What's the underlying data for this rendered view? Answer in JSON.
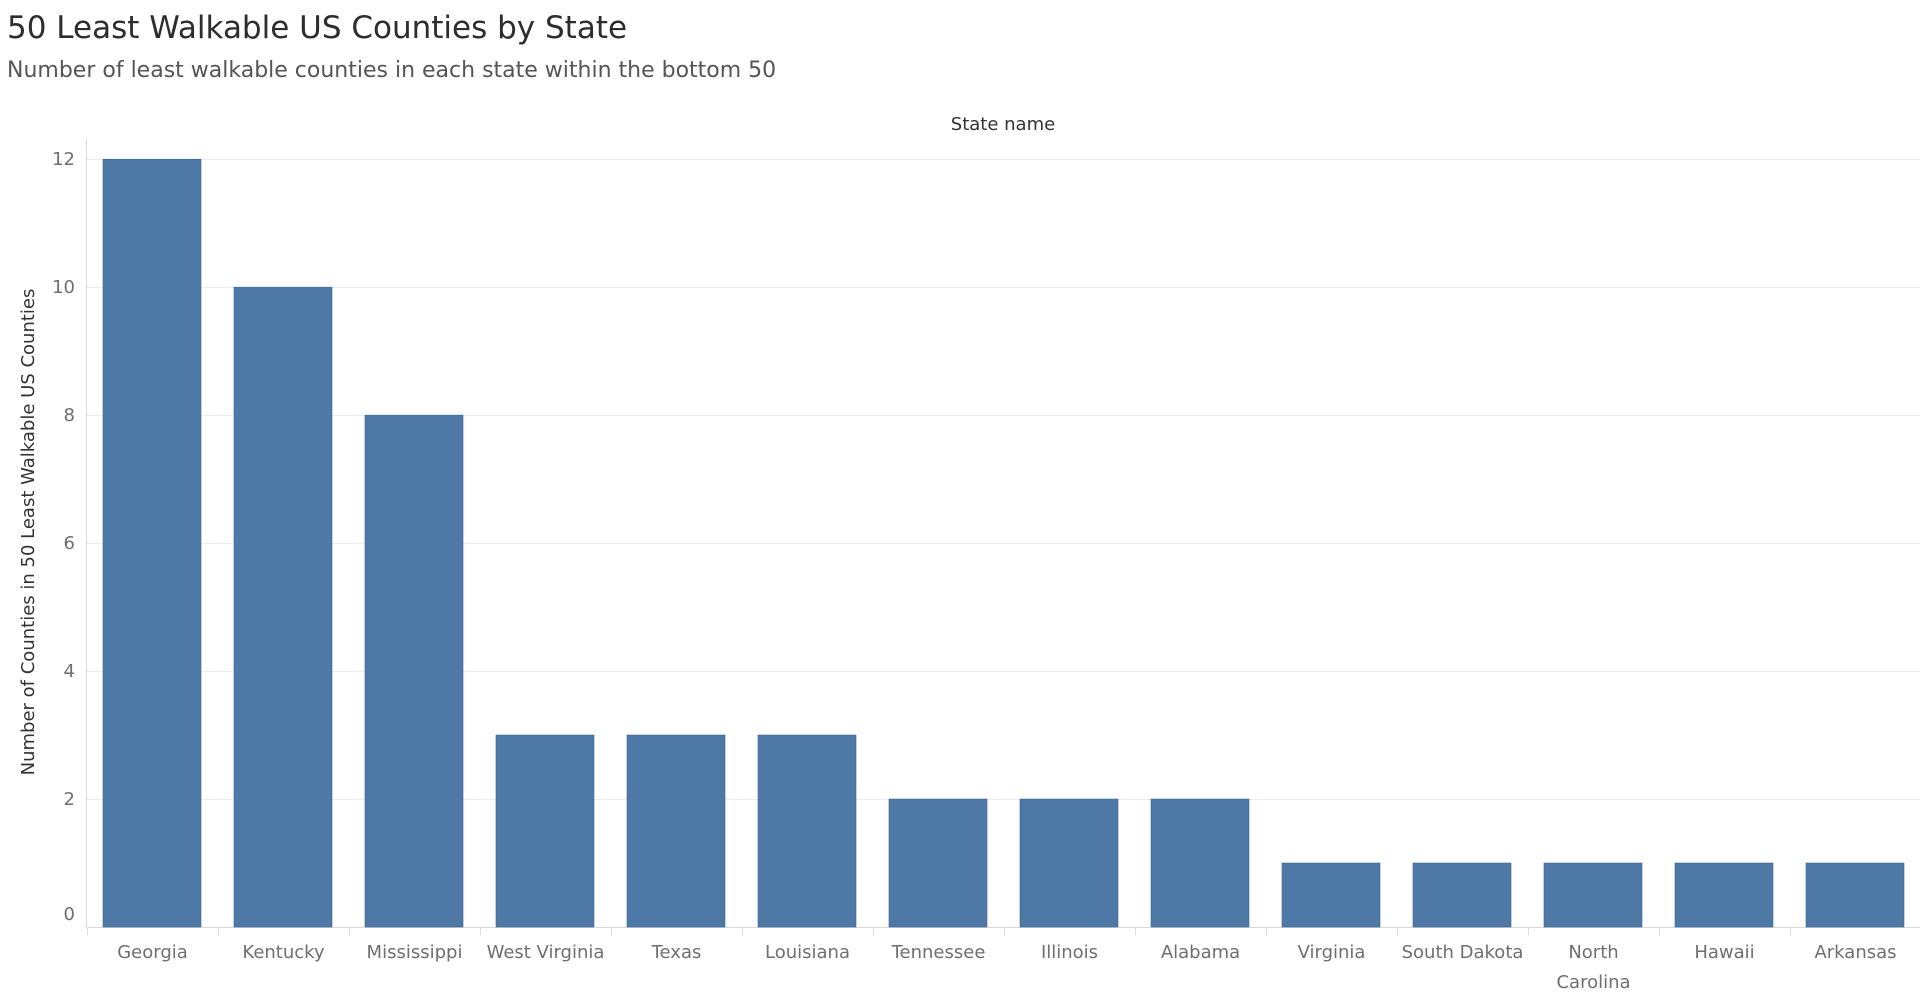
{
  "header": {
    "title": "50 Least Walkable US Counties by State",
    "subtitle": "Number of least walkable counties in each state within the bottom 50"
  },
  "colors": {
    "bar": "#4e79a7",
    "grid": "#ececec",
    "axis": "#d9d9d9"
  },
  "chart_data": {
    "type": "bar",
    "title": "50 Least Walkable US Counties by State",
    "subtitle": "Number of least walkable counties in each state within the bottom 50",
    "column_header": "State name",
    "ylabel": "Number of Counties in 50 Least Walkable US Counties",
    "categories": [
      "Georgia",
      "Kentucky",
      "Mississippi",
      "West Virginia",
      "Texas",
      "Louisiana",
      "Tennessee",
      "Illinois",
      "Alabama",
      "Virginia",
      "South Dakota",
      "North Carolina",
      "Hawaii",
      "Arkansas"
    ],
    "values": [
      12,
      10,
      8,
      3,
      3,
      3,
      2,
      2,
      2,
      1,
      1,
      1,
      1,
      1
    ],
    "ylim": [
      0,
      12.3
    ],
    "yticks": [
      0,
      2,
      4,
      6,
      8,
      10,
      12
    ],
    "grid": true,
    "legend": "none"
  }
}
